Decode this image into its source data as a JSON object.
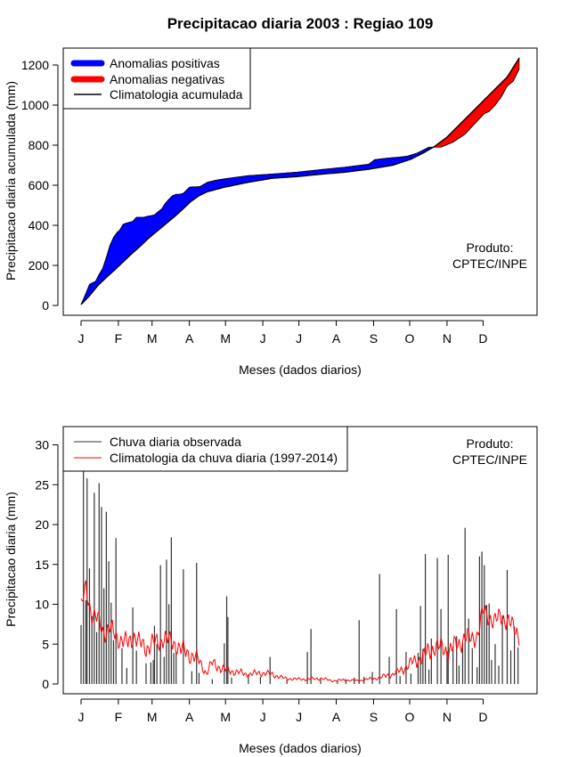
{
  "title": "Precipitacao diaria 2003 : Regiao 109",
  "product_label": [
    "Produto:",
    "CPTEC/INPE"
  ],
  "colors": {
    "positive": "#0000ff",
    "negative": "#ff0000",
    "climatology": "#000000",
    "observed_bar": "#333333",
    "clim_daily": "#ff0000"
  },
  "chart_data": [
    {
      "type": "area",
      "title": "Precipitacao diaria 2003 : Regiao 109",
      "xlabel": "Meses (dados diarios)",
      "ylabel": "Precipitacao diaria acumulada (mm)",
      "x_tick_labels": [
        "J",
        "F",
        "M",
        "A",
        "M",
        "J",
        "J",
        "A",
        "S",
        "O",
        "N",
        "D"
      ],
      "x_tick_days": [
        1,
        32,
        60,
        91,
        121,
        152,
        182,
        213,
        244,
        274,
        305,
        335
      ],
      "xlim": [
        1,
        365
      ],
      "ylim": [
        0,
        1240
      ],
      "y_ticks": [
        0,
        200,
        400,
        600,
        800,
        1000,
        1200
      ],
      "grid": false,
      "legend_position": "top-left",
      "legend": [
        {
          "label": "Anomalias positivas",
          "kind": "band",
          "color": "#0000ff"
        },
        {
          "label": "Anomalias negativas",
          "kind": "band",
          "color": "#ff0000"
        },
        {
          "label": "Climatologia acumulada",
          "kind": "line",
          "color": "#000000"
        }
      ],
      "series": [
        {
          "name": "Climatologia acumulada",
          "x": [
            1,
            8,
            15,
            22,
            29,
            36,
            43,
            50,
            57,
            64,
            71,
            78,
            85,
            92,
            99,
            106,
            120,
            140,
            160,
            180,
            200,
            220,
            240,
            260,
            275,
            285,
            295,
            305,
            315,
            325,
            335,
            345,
            355,
            365
          ],
          "values": [
            5,
            48,
            100,
            140,
            178,
            218,
            258,
            295,
            335,
            370,
            405,
            440,
            478,
            518,
            548,
            568,
            590,
            615,
            635,
            643,
            655,
            665,
            680,
            700,
            730,
            760,
            795,
            840,
            900,
            960,
            1020,
            1080,
            1140,
            1235
          ]
        },
        {
          "name": "Precipitacao acumulada observada",
          "x": [
            1,
            5,
            8,
            10,
            13,
            16,
            19,
            22,
            25,
            28,
            31,
            33,
            36,
            38,
            41,
            44,
            47,
            50,
            53,
            56,
            59,
            62,
            65,
            68,
            71,
            74,
            77,
            80,
            83,
            86,
            89,
            91,
            94,
            97,
            100,
            106,
            113,
            120,
            140,
            160,
            180,
            200,
            220,
            240,
            245,
            255,
            265,
            272,
            280,
            290,
            300,
            310,
            320,
            330,
            336,
            340,
            345,
            350,
            355,
            360,
            365
          ],
          "values": [
            5,
            60,
            105,
            112,
            120,
            155,
            185,
            240,
            300,
            340,
            365,
            375,
            405,
            410,
            415,
            420,
            440,
            440,
            440,
            445,
            448,
            452,
            468,
            482,
            510,
            530,
            548,
            555,
            555,
            560,
            578,
            590,
            592,
            592,
            594,
            615,
            625,
            632,
            648,
            656,
            665,
            678,
            690,
            705,
            728,
            735,
            740,
            745,
            760,
            790,
            790,
            815,
            855,
            920,
            958,
            968,
            1000,
            1040,
            1095,
            1120,
            1180
          ]
        }
      ]
    },
    {
      "type": "bar",
      "xlabel": "Meses (dados diarios)",
      "ylabel": "Precipitacao diaria (mm)",
      "x_tick_labels": [
        "J",
        "F",
        "M",
        "A",
        "M",
        "J",
        "J",
        "A",
        "S",
        "O",
        "N",
        "D"
      ],
      "x_tick_days": [
        1,
        32,
        60,
        91,
        121,
        152,
        182,
        213,
        244,
        274,
        305,
        335
      ],
      "xlim": [
        1,
        365
      ],
      "ylim": [
        0,
        31
      ],
      "y_ticks": [
        0,
        5,
        10,
        15,
        20,
        25,
        30
      ],
      "grid": false,
      "legend_position": "top-left",
      "legend": [
        {
          "label": "Chuva diaria observada",
          "kind": "line",
          "color": "#333333"
        },
        {
          "label": "Climatologia da chuva diaria (1997-2014)",
          "kind": "line",
          "color": "#ff0000"
        }
      ],
      "series": [
        {
          "name": "Chuva diaria observada",
          "peaks": [
            {
              "day": 1,
              "value": 7.4
            },
            {
              "day": 3,
              "value": 27.0
            },
            {
              "day": 5,
              "value": 10.5
            },
            {
              "day": 6,
              "value": 25.8
            },
            {
              "day": 8,
              "value": 14.5
            },
            {
              "day": 10,
              "value": 8.5
            },
            {
              "day": 12,
              "value": 24.0
            },
            {
              "day": 14,
              "value": 6.5
            },
            {
              "day": 16,
              "value": 25.2
            },
            {
              "day": 18,
              "value": 22.2
            },
            {
              "day": 20,
              "value": 12.0
            },
            {
              "day": 22,
              "value": 21.6
            },
            {
              "day": 24,
              "value": 15.4
            },
            {
              "day": 26,
              "value": 10.2
            },
            {
              "day": 28,
              "value": 5.5
            },
            {
              "day": 30,
              "value": 18.3
            },
            {
              "day": 35,
              "value": 4.5
            },
            {
              "day": 39,
              "value": 2.0
            },
            {
              "day": 44,
              "value": 9.6
            },
            {
              "day": 47,
              "value": 4.2
            },
            {
              "day": 55,
              "value": 2.6
            },
            {
              "day": 59,
              "value": 2.7
            },
            {
              "day": 61,
              "value": 3.0
            },
            {
              "day": 62,
              "value": 7.3
            },
            {
              "day": 64,
              "value": 5.0
            },
            {
              "day": 67,
              "value": 14.9
            },
            {
              "day": 70,
              "value": 3.4
            },
            {
              "day": 72,
              "value": 15.6
            },
            {
              "day": 74,
              "value": 10.0
            },
            {
              "day": 76,
              "value": 18.4
            },
            {
              "day": 78,
              "value": 3.9
            },
            {
              "day": 80,
              "value": 4.0
            },
            {
              "day": 86,
              "value": 14.4
            },
            {
              "day": 93,
              "value": 1.6
            },
            {
              "day": 97,
              "value": 15.2
            },
            {
              "day": 99,
              "value": 1.4
            },
            {
              "day": 110,
              "value": 0.6
            },
            {
              "day": 120,
              "value": 5.1
            },
            {
              "day": 122,
              "value": 11.0
            },
            {
              "day": 123,
              "value": 8.4
            },
            {
              "day": 126,
              "value": 0.8
            },
            {
              "day": 140,
              "value": 1.2
            },
            {
              "day": 150,
              "value": 0.9
            },
            {
              "day": 158,
              "value": 3.4
            },
            {
              "day": 172,
              "value": 0.5
            },
            {
              "day": 189,
              "value": 4.0
            },
            {
              "day": 192,
              "value": 6.9
            },
            {
              "day": 200,
              "value": 0.6
            },
            {
              "day": 214,
              "value": 0.4
            },
            {
              "day": 221,
              "value": 0.6
            },
            {
              "day": 228,
              "value": 0.8
            },
            {
              "day": 232,
              "value": 8.0
            },
            {
              "day": 236,
              "value": 0.9
            },
            {
              "day": 243,
              "value": 1.5
            },
            {
              "day": 249,
              "value": 13.8
            },
            {
              "day": 257,
              "value": 3.4
            },
            {
              "day": 263,
              "value": 9.4
            },
            {
              "day": 266,
              "value": 1.0
            },
            {
              "day": 271,
              "value": 4.0
            },
            {
              "day": 275,
              "value": 1.3
            },
            {
              "day": 281,
              "value": 3.9
            },
            {
              "day": 283,
              "value": 9.8
            },
            {
              "day": 285,
              "value": 4.4
            },
            {
              "day": 287,
              "value": 16.3
            },
            {
              "day": 290,
              "value": 1.8
            },
            {
              "day": 292,
              "value": 5.7
            },
            {
              "day": 297,
              "value": 15.8
            },
            {
              "day": 300,
              "value": 9.4
            },
            {
              "day": 305,
              "value": 4.1
            },
            {
              "day": 306,
              "value": 16.2
            },
            {
              "day": 310,
              "value": 4.7
            },
            {
              "day": 313,
              "value": 6.0
            },
            {
              "day": 315,
              "value": 2.3
            },
            {
              "day": 318,
              "value": 5.2
            },
            {
              "day": 320,
              "value": 19.6
            },
            {
              "day": 323,
              "value": 8.2
            },
            {
              "day": 326,
              "value": 4.5
            },
            {
              "day": 330,
              "value": 2.1
            },
            {
              "day": 332,
              "value": 16.0
            },
            {
              "day": 334,
              "value": 16.6
            },
            {
              "day": 336,
              "value": 14.9
            },
            {
              "day": 338,
              "value": 9.9
            },
            {
              "day": 340,
              "value": 10.1
            },
            {
              "day": 342,
              "value": 3.0
            },
            {
              "day": 345,
              "value": 5.0
            },
            {
              "day": 348,
              "value": 2.3
            },
            {
              "day": 351,
              "value": 8.6
            },
            {
              "day": 355,
              "value": 14.3
            },
            {
              "day": 358,
              "value": 4.2
            },
            {
              "day": 361,
              "value": 7.2
            },
            {
              "day": 364,
              "value": 4.6
            }
          ]
        },
        {
          "name": "Climatologia da chuva diaria (1997-2014)",
          "x": [
            1,
            5,
            10,
            15,
            20,
            25,
            30,
            35,
            40,
            45,
            50,
            55,
            60,
            65,
            70,
            75,
            80,
            85,
            90,
            95,
            100,
            105,
            110,
            120,
            130,
            140,
            150,
            160,
            170,
            180,
            190,
            200,
            210,
            220,
            230,
            240,
            250,
            255,
            260,
            265,
            270,
            275,
            280,
            285,
            290,
            295,
            300,
            305,
            310,
            315,
            320,
            325,
            330,
            335,
            340,
            345,
            350,
            355,
            360,
            365
          ],
          "values": [
            9.5,
            12.0,
            8.8,
            8.0,
            6.5,
            7.0,
            6.0,
            5.5,
            5.0,
            6.2,
            5.0,
            4.5,
            5.2,
            5.0,
            6.0,
            5.2,
            5.0,
            4.2,
            3.8,
            3.5,
            2.6,
            1.4,
            2.6,
            1.8,
            1.5,
            1.2,
            1.4,
            1.2,
            0.7,
            0.6,
            0.6,
            0.7,
            0.4,
            0.5,
            0.4,
            0.6,
            0.8,
            1.1,
            1.2,
            1.6,
            2.0,
            2.6,
            3.0,
            3.4,
            4.0,
            4.8,
            4.5,
            4.2,
            4.6,
            5.0,
            6.0,
            5.5,
            6.2,
            9.0,
            8.5,
            7.8,
            8.5,
            8.0,
            7.0,
            6.3
          ]
        }
      ]
    }
  ]
}
